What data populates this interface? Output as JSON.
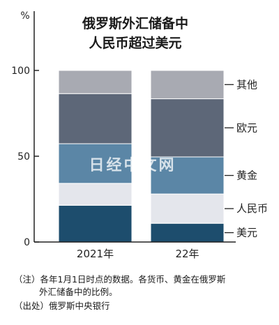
{
  "title_lines": [
    "俄罗斯外汇储备中",
    "人民币超过美元"
  ],
  "notes": {
    "line1": "（注）各年1月1日时点的数据。各货币、黄金在俄罗斯",
    "line2": "外汇储备中的比例。",
    "source": "（出处）俄罗斯中央银行"
  },
  "watermark": "日经中文网",
  "colors": {
    "美元": "#1d4d6d",
    "人民币": "#e4e6ec",
    "黄金": "#5b86a6",
    "欧元": "#5d6778",
    "其他": "#a8aab2",
    "axis": "#222222"
  },
  "chart_data": {
    "type": "bar",
    "stacked": true,
    "y_unit": "%",
    "ylim": [
      0,
      100
    ],
    "y_ticks": [
      "0",
      "50",
      "100"
    ],
    "categories": [
      "2021年",
      "22年"
    ],
    "series": [
      {
        "name": "美元",
        "values": [
          21.4,
          10.9
        ]
      },
      {
        "name": "人民币",
        "values": [
          12.8,
          17.1
        ]
      },
      {
        "name": "黄金",
        "values": [
          23.1,
          21.6
        ]
      },
      {
        "name": "欧元",
        "values": [
          29.2,
          33.9
        ]
      },
      {
        "name": "其他",
        "values": [
          13.5,
          16.5
        ]
      }
    ]
  }
}
